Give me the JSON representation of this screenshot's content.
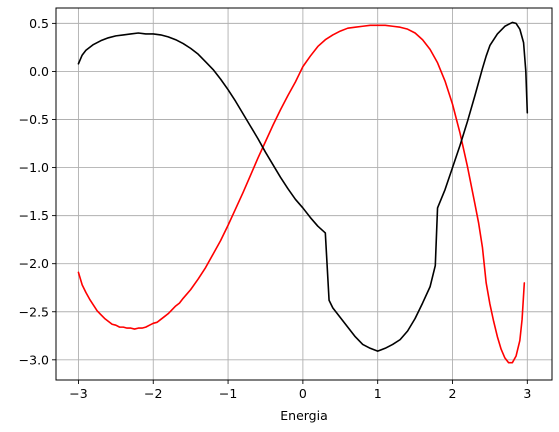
{
  "chart_data": {
    "type": "line",
    "title": "",
    "xlabel": "Energia",
    "ylabel": "",
    "xlim": [
      -3.3,
      3.33
    ],
    "ylim": [
      -3.21,
      0.66
    ],
    "grid": true,
    "x_ticks": [
      -3,
      -2,
      -1,
      0,
      1,
      2,
      3
    ],
    "x_tick_labels": [
      "−3",
      "−2",
      "−1",
      "0",
      "1",
      "2",
      "3"
    ],
    "y_ticks": [
      0.5,
      0.0,
      -0.5,
      -1.0,
      -1.5,
      -2.0,
      -2.5,
      -3.0
    ],
    "y_tick_labels": [
      "0.5",
      "0.0",
      "−0.5",
      "−1.0",
      "−1.5",
      "−2.0",
      "−2.5",
      "−3.0"
    ],
    "series": [
      {
        "color": "#ff0000",
        "points": [
          [
            -3.0,
            -2.09
          ],
          [
            -2.95,
            -2.22
          ],
          [
            -2.9,
            -2.3
          ],
          [
            -2.85,
            -2.37
          ],
          [
            -2.8,
            -2.43
          ],
          [
            -2.75,
            -2.49
          ],
          [
            -2.7,
            -2.53
          ],
          [
            -2.65,
            -2.57
          ],
          [
            -2.6,
            -2.6
          ],
          [
            -2.55,
            -2.63
          ],
          [
            -2.5,
            -2.64
          ],
          [
            -2.45,
            -2.66
          ],
          [
            -2.4,
            -2.66
          ],
          [
            -2.35,
            -2.67
          ],
          [
            -2.3,
            -2.67
          ],
          [
            -2.25,
            -2.68
          ],
          [
            -2.2,
            -2.67
          ],
          [
            -2.15,
            -2.67
          ],
          [
            -2.1,
            -2.66
          ],
          [
            -2.05,
            -2.64
          ],
          [
            -2.0,
            -2.62
          ],
          [
            -1.95,
            -2.61
          ],
          [
            -1.9,
            -2.58
          ],
          [
            -1.85,
            -2.55
          ],
          [
            -1.8,
            -2.52
          ],
          [
            -1.75,
            -2.48
          ],
          [
            -1.7,
            -2.44
          ],
          [
            -1.65,
            -2.41
          ],
          [
            -1.6,
            -2.36
          ],
          [
            -1.5,
            -2.27
          ],
          [
            -1.4,
            -2.16
          ],
          [
            -1.3,
            -2.04
          ],
          [
            -1.2,
            -1.9
          ],
          [
            -1.1,
            -1.76
          ],
          [
            -1.0,
            -1.6
          ],
          [
            -0.9,
            -1.43
          ],
          [
            -0.8,
            -1.26
          ],
          [
            -0.7,
            -1.08
          ],
          [
            -0.6,
            -0.9
          ],
          [
            -0.5,
            -0.73
          ],
          [
            -0.4,
            -0.56
          ],
          [
            -0.3,
            -0.4
          ],
          [
            -0.2,
            -0.25
          ],
          [
            -0.1,
            -0.11
          ],
          [
            -0.05,
            -0.03
          ],
          [
            0.0,
            0.05
          ],
          [
            0.1,
            0.16
          ],
          [
            0.2,
            0.26
          ],
          [
            0.3,
            0.33
          ],
          [
            0.4,
            0.38
          ],
          [
            0.5,
            0.42
          ],
          [
            0.6,
            0.45
          ],
          [
            0.7,
            0.46
          ],
          [
            0.8,
            0.47
          ],
          [
            0.9,
            0.48
          ],
          [
            1.0,
            0.48
          ],
          [
            1.1,
            0.48
          ],
          [
            1.2,
            0.47
          ],
          [
            1.3,
            0.46
          ],
          [
            1.4,
            0.44
          ],
          [
            1.5,
            0.4
          ],
          [
            1.6,
            0.33
          ],
          [
            1.7,
            0.23
          ],
          [
            1.8,
            0.09
          ],
          [
            1.9,
            -0.1
          ],
          [
            2.0,
            -0.34
          ],
          [
            2.1,
            -0.64
          ],
          [
            2.2,
            -0.99
          ],
          [
            2.3,
            -1.38
          ],
          [
            2.35,
            -1.58
          ],
          [
            2.4,
            -1.83
          ],
          [
            2.45,
            -2.2
          ],
          [
            2.5,
            -2.42
          ],
          [
            2.55,
            -2.6
          ],
          [
            2.6,
            -2.76
          ],
          [
            2.65,
            -2.89
          ],
          [
            2.7,
            -2.98
          ],
          [
            2.75,
            -3.03
          ],
          [
            2.8,
            -3.03
          ],
          [
            2.85,
            -2.96
          ],
          [
            2.9,
            -2.8
          ],
          [
            2.93,
            -2.58
          ],
          [
            2.96,
            -2.2
          ]
        ]
      },
      {
        "color": "#000000",
        "points": [
          [
            -3.0,
            0.08
          ],
          [
            -2.95,
            0.17
          ],
          [
            -2.9,
            0.22
          ],
          [
            -2.8,
            0.28
          ],
          [
            -2.7,
            0.32
          ],
          [
            -2.6,
            0.35
          ],
          [
            -2.5,
            0.37
          ],
          [
            -2.4,
            0.38
          ],
          [
            -2.3,
            0.39
          ],
          [
            -2.2,
            0.4
          ],
          [
            -2.1,
            0.39
          ],
          [
            -2.0,
            0.39
          ],
          [
            -1.9,
            0.38
          ],
          [
            -1.8,
            0.36
          ],
          [
            -1.7,
            0.33
          ],
          [
            -1.6,
            0.29
          ],
          [
            -1.5,
            0.24
          ],
          [
            -1.4,
            0.18
          ],
          [
            -1.3,
            0.1
          ],
          [
            -1.2,
            0.02
          ],
          [
            -1.1,
            -0.08
          ],
          [
            -1.0,
            -0.19
          ],
          [
            -0.9,
            -0.31
          ],
          [
            -0.8,
            -0.44
          ],
          [
            -0.7,
            -0.57
          ],
          [
            -0.6,
            -0.7
          ],
          [
            -0.5,
            -0.84
          ],
          [
            -0.4,
            -0.97
          ],
          [
            -0.3,
            -1.1
          ],
          [
            -0.2,
            -1.22
          ],
          [
            -0.1,
            -1.33
          ],
          [
            0.0,
            -1.42
          ],
          [
            0.1,
            -1.52
          ],
          [
            0.2,
            -1.61
          ],
          [
            0.3,
            -1.68
          ],
          [
            0.35,
            -2.38
          ],
          [
            0.4,
            -2.46
          ],
          [
            0.5,
            -2.56
          ],
          [
            0.6,
            -2.66
          ],
          [
            0.7,
            -2.76
          ],
          [
            0.8,
            -2.84
          ],
          [
            0.9,
            -2.88
          ],
          [
            1.0,
            -2.91
          ],
          [
            1.1,
            -2.88
          ],
          [
            1.2,
            -2.84
          ],
          [
            1.3,
            -2.79
          ],
          [
            1.4,
            -2.7
          ],
          [
            1.5,
            -2.57
          ],
          [
            1.6,
            -2.41
          ],
          [
            1.7,
            -2.24
          ],
          [
            1.77,
            -2.02
          ],
          [
            1.8,
            -1.42
          ],
          [
            1.9,
            -1.23
          ],
          [
            2.0,
            -1.0
          ],
          [
            2.1,
            -0.77
          ],
          [
            2.2,
            -0.52
          ],
          [
            2.3,
            -0.25
          ],
          [
            2.4,
            0.03
          ],
          [
            2.45,
            0.16
          ],
          [
            2.5,
            0.27
          ],
          [
            2.6,
            0.39
          ],
          [
            2.7,
            0.47
          ],
          [
            2.8,
            0.51
          ],
          [
            2.85,
            0.5
          ],
          [
            2.9,
            0.44
          ],
          [
            2.95,
            0.3
          ],
          [
            2.98,
            0.0
          ],
          [
            3.0,
            -0.43
          ]
        ]
      }
    ]
  }
}
